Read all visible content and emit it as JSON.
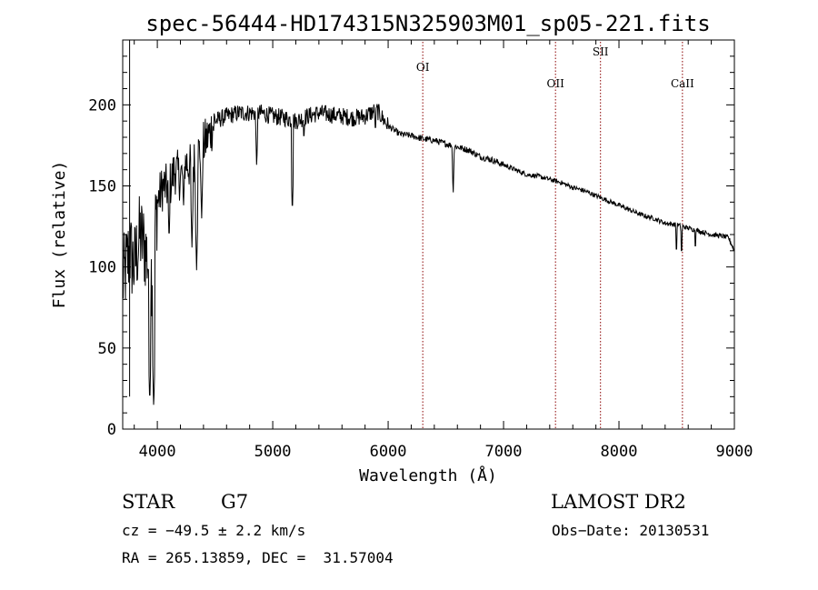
{
  "chart_data": {
    "type": "line",
    "title": "spec-56444-HD174315N325903M01_sp05-221.fits",
    "xlabel": "Wavelength (Å)",
    "ylabel": "Flux (relative)",
    "xlim": [
      3700,
      9000
    ],
    "ylim": [
      0,
      240
    ],
    "x_ticks": [
      4000,
      5000,
      6000,
      7000,
      8000,
      9000
    ],
    "y_ticks": [
      0,
      50,
      100,
      150,
      200
    ],
    "line_color": "#000000",
    "marker_color": "#8b0000",
    "series": [
      {
        "continuum": [
          [
            3700,
            90
          ],
          [
            3760,
            110
          ],
          [
            3800,
            100
          ],
          [
            3850,
            120
          ],
          [
            3900,
            110
          ],
          [
            3950,
            95
          ],
          [
            4000,
            140
          ],
          [
            4050,
            150
          ],
          [
            4100,
            148
          ],
          [
            4150,
            160
          ],
          [
            4200,
            155
          ],
          [
            4250,
            165
          ],
          [
            4300,
            160
          ],
          [
            4350,
            170
          ],
          [
            4400,
            175
          ],
          [
            4450,
            182
          ],
          [
            4500,
            190
          ],
          [
            4600,
            193
          ],
          [
            4700,
            195
          ],
          [
            4800,
            195
          ],
          [
            4900,
            195
          ],
          [
            5000,
            193
          ],
          [
            5100,
            192
          ],
          [
            5200,
            190
          ],
          [
            5300,
            193
          ],
          [
            5400,
            195
          ],
          [
            5500,
            194
          ],
          [
            5600,
            193
          ],
          [
            5700,
            192
          ],
          [
            5800,
            193
          ],
          [
            5900,
            197
          ],
          [
            6000,
            187
          ],
          [
            6100,
            182
          ],
          [
            6200,
            181
          ],
          [
            6300,
            179
          ],
          [
            6400,
            178
          ],
          [
            6500,
            176
          ],
          [
            6600,
            174
          ],
          [
            6700,
            172
          ],
          [
            6800,
            168
          ],
          [
            6900,
            166
          ],
          [
            7000,
            163
          ],
          [
            7100,
            160
          ],
          [
            7200,
            157
          ],
          [
            7300,
            156
          ],
          [
            7400,
            154
          ],
          [
            7500,
            152
          ],
          [
            7600,
            149
          ],
          [
            7700,
            147
          ],
          [
            7800,
            144
          ],
          [
            7900,
            141
          ],
          [
            8000,
            138
          ],
          [
            8100,
            135
          ],
          [
            8200,
            132
          ],
          [
            8300,
            130
          ],
          [
            8400,
            127
          ],
          [
            8500,
            126
          ],
          [
            8600,
            124
          ],
          [
            8700,
            122
          ],
          [
            8800,
            120
          ],
          [
            8900,
            119
          ],
          [
            8950,
            118
          ],
          [
            9000,
            110
          ]
        ],
        "absorption_lines": [
          [
            3934,
            15
          ],
          [
            3969,
            12
          ],
          [
            4102,
            115
          ],
          [
            4227,
            135
          ],
          [
            4300,
            112
          ],
          [
            4340,
            98
          ],
          [
            4384,
            130
          ],
          [
            4861,
            160
          ],
          [
            5170,
            132
          ],
          [
            5270,
            175
          ],
          [
            5890,
            180
          ],
          [
            6563,
            143
          ],
          [
            8498,
            105
          ],
          [
            8542,
            104
          ],
          [
            8662,
            107
          ]
        ]
      }
    ],
    "line_markers": [
      {
        "label": "OI",
        "wavelength": 6300
      },
      {
        "label": "OII",
        "wavelength": 7450
      },
      {
        "label": "SII",
        "wavelength": 7840
      },
      {
        "label": "CaII",
        "wavelength": 8550
      }
    ]
  },
  "info": {
    "class_label": "STAR",
    "subclass": "G7",
    "survey": "LAMOST DR2",
    "cz": "cz = −49.5 ± 2.2 km/s",
    "obs_date": "Obs−Date: 20130531",
    "coords": "RA = 265.13859, DEC =  31.57004"
  }
}
